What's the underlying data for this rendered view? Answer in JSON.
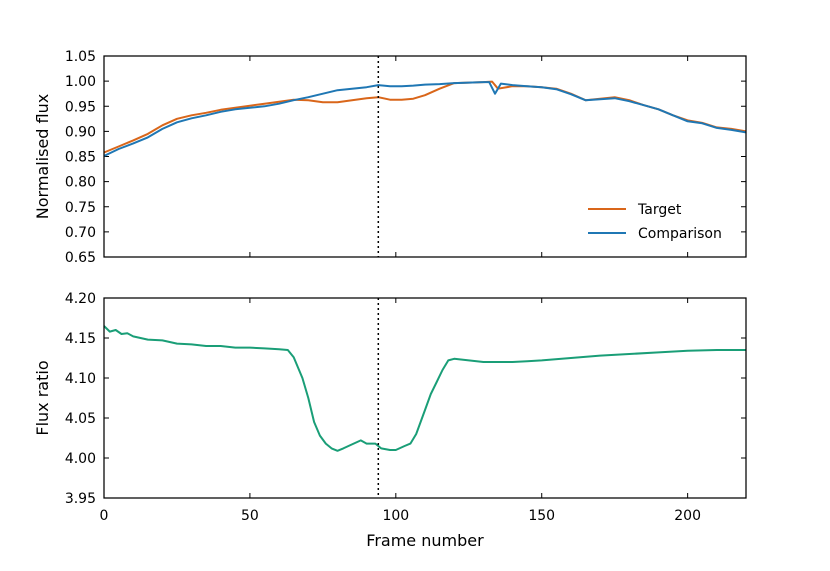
{
  "chart_data": [
    {
      "type": "line",
      "panel": "top",
      "xlabel": "",
      "ylabel": "Normalised flux",
      "xlim": [
        0,
        220
      ],
      "ylim": [
        0.65,
        1.05
      ],
      "yticks": [
        "0.65",
        "0.70",
        "0.75",
        "0.80",
        "0.85",
        "0.90",
        "0.95",
        "1.00",
        "1.05"
      ],
      "grid": false,
      "legend_position": "lower-right",
      "vline_x": 94,
      "series": [
        {
          "name": "Target",
          "color": "#d9661a",
          "x": [
            0,
            5,
            10,
            15,
            20,
            25,
            30,
            35,
            40,
            45,
            50,
            55,
            60,
            65,
            70,
            75,
            80,
            85,
            90,
            94,
            98,
            102,
            106,
            110,
            115,
            120,
            125,
            130,
            133,
            135,
            140,
            145,
            150,
            155,
            160,
            165,
            170,
            175,
            180,
            185,
            190,
            195,
            200,
            205,
            210,
            215,
            220
          ],
          "values": [
            0.858,
            0.87,
            0.882,
            0.895,
            0.912,
            0.925,
            0.932,
            0.937,
            0.943,
            0.947,
            0.951,
            0.955,
            0.959,
            0.963,
            0.962,
            0.958,
            0.958,
            0.962,
            0.966,
            0.968,
            0.963,
            0.963,
            0.965,
            0.972,
            0.985,
            0.996,
            0.997,
            0.998,
            0.999,
            0.985,
            0.99,
            0.99,
            0.988,
            0.985,
            0.975,
            0.962,
            0.965,
            0.968,
            0.962,
            0.952,
            0.944,
            0.932,
            0.922,
            0.917,
            0.908,
            0.905,
            0.9
          ]
        },
        {
          "name": "Comparison",
          "color": "#1f77b4",
          "x": [
            0,
            5,
            10,
            15,
            20,
            25,
            30,
            35,
            40,
            45,
            50,
            55,
            60,
            65,
            70,
            75,
            80,
            85,
            90,
            94,
            98,
            102,
            106,
            110,
            115,
            120,
            125,
            130,
            132,
            134,
            136,
            140,
            145,
            150,
            155,
            160,
            165,
            170,
            175,
            180,
            185,
            190,
            195,
            200,
            205,
            210,
            215,
            220
          ],
          "values": [
            0.851,
            0.865,
            0.876,
            0.888,
            0.905,
            0.918,
            0.926,
            0.932,
            0.939,
            0.944,
            0.947,
            0.95,
            0.955,
            0.962,
            0.968,
            0.975,
            0.982,
            0.985,
            0.988,
            0.992,
            0.99,
            0.99,
            0.991,
            0.993,
            0.994,
            0.996,
            0.997,
            0.998,
            0.998,
            0.975,
            0.995,
            0.992,
            0.99,
            0.988,
            0.984,
            0.974,
            0.962,
            0.964,
            0.966,
            0.96,
            0.952,
            0.944,
            0.932,
            0.92,
            0.916,
            0.907,
            0.903,
            0.898
          ]
        }
      ]
    },
    {
      "type": "line",
      "panel": "bottom",
      "xlabel": "Frame number",
      "ylabel": "Flux ratio",
      "xlim": [
        0,
        220
      ],
      "ylim": [
        3.95,
        4.2
      ],
      "xticks": [
        "0",
        "50",
        "100",
        "150",
        "200"
      ],
      "yticks": [
        "3.95",
        "4.00",
        "4.05",
        "4.10",
        "4.15",
        "4.20"
      ],
      "grid": false,
      "vline_x": 94,
      "series": [
        {
          "color": "#1a9e77",
          "x": [
            0,
            2,
            4,
            6,
            8,
            10,
            15,
            20,
            25,
            30,
            35,
            40,
            45,
            50,
            55,
            60,
            63,
            65,
            68,
            70,
            72,
            74,
            76,
            78,
            80,
            82,
            85,
            88,
            90,
            93,
            95,
            98,
            100,
            103,
            105,
            107,
            110,
            112,
            114,
            116,
            118,
            120,
            125,
            130,
            135,
            140,
            145,
            150,
            160,
            170,
            180,
            190,
            200,
            210,
            220
          ],
          "values": [
            4.165,
            4.158,
            4.16,
            4.155,
            4.156,
            4.152,
            4.148,
            4.147,
            4.143,
            4.142,
            4.14,
            4.14,
            4.138,
            4.138,
            4.137,
            4.136,
            4.135,
            4.126,
            4.1,
            4.075,
            4.045,
            4.028,
            4.018,
            4.012,
            4.009,
            4.012,
            4.017,
            4.022,
            4.018,
            4.018,
            4.012,
            4.01,
            4.01,
            4.015,
            4.018,
            4.03,
            4.06,
            4.08,
            4.095,
            4.11,
            4.122,
            4.124,
            4.122,
            4.12,
            4.12,
            4.12,
            4.121,
            4.122,
            4.125,
            4.128,
            4.13,
            4.132,
            4.134,
            4.135,
            4.135
          ]
        }
      ]
    }
  ]
}
